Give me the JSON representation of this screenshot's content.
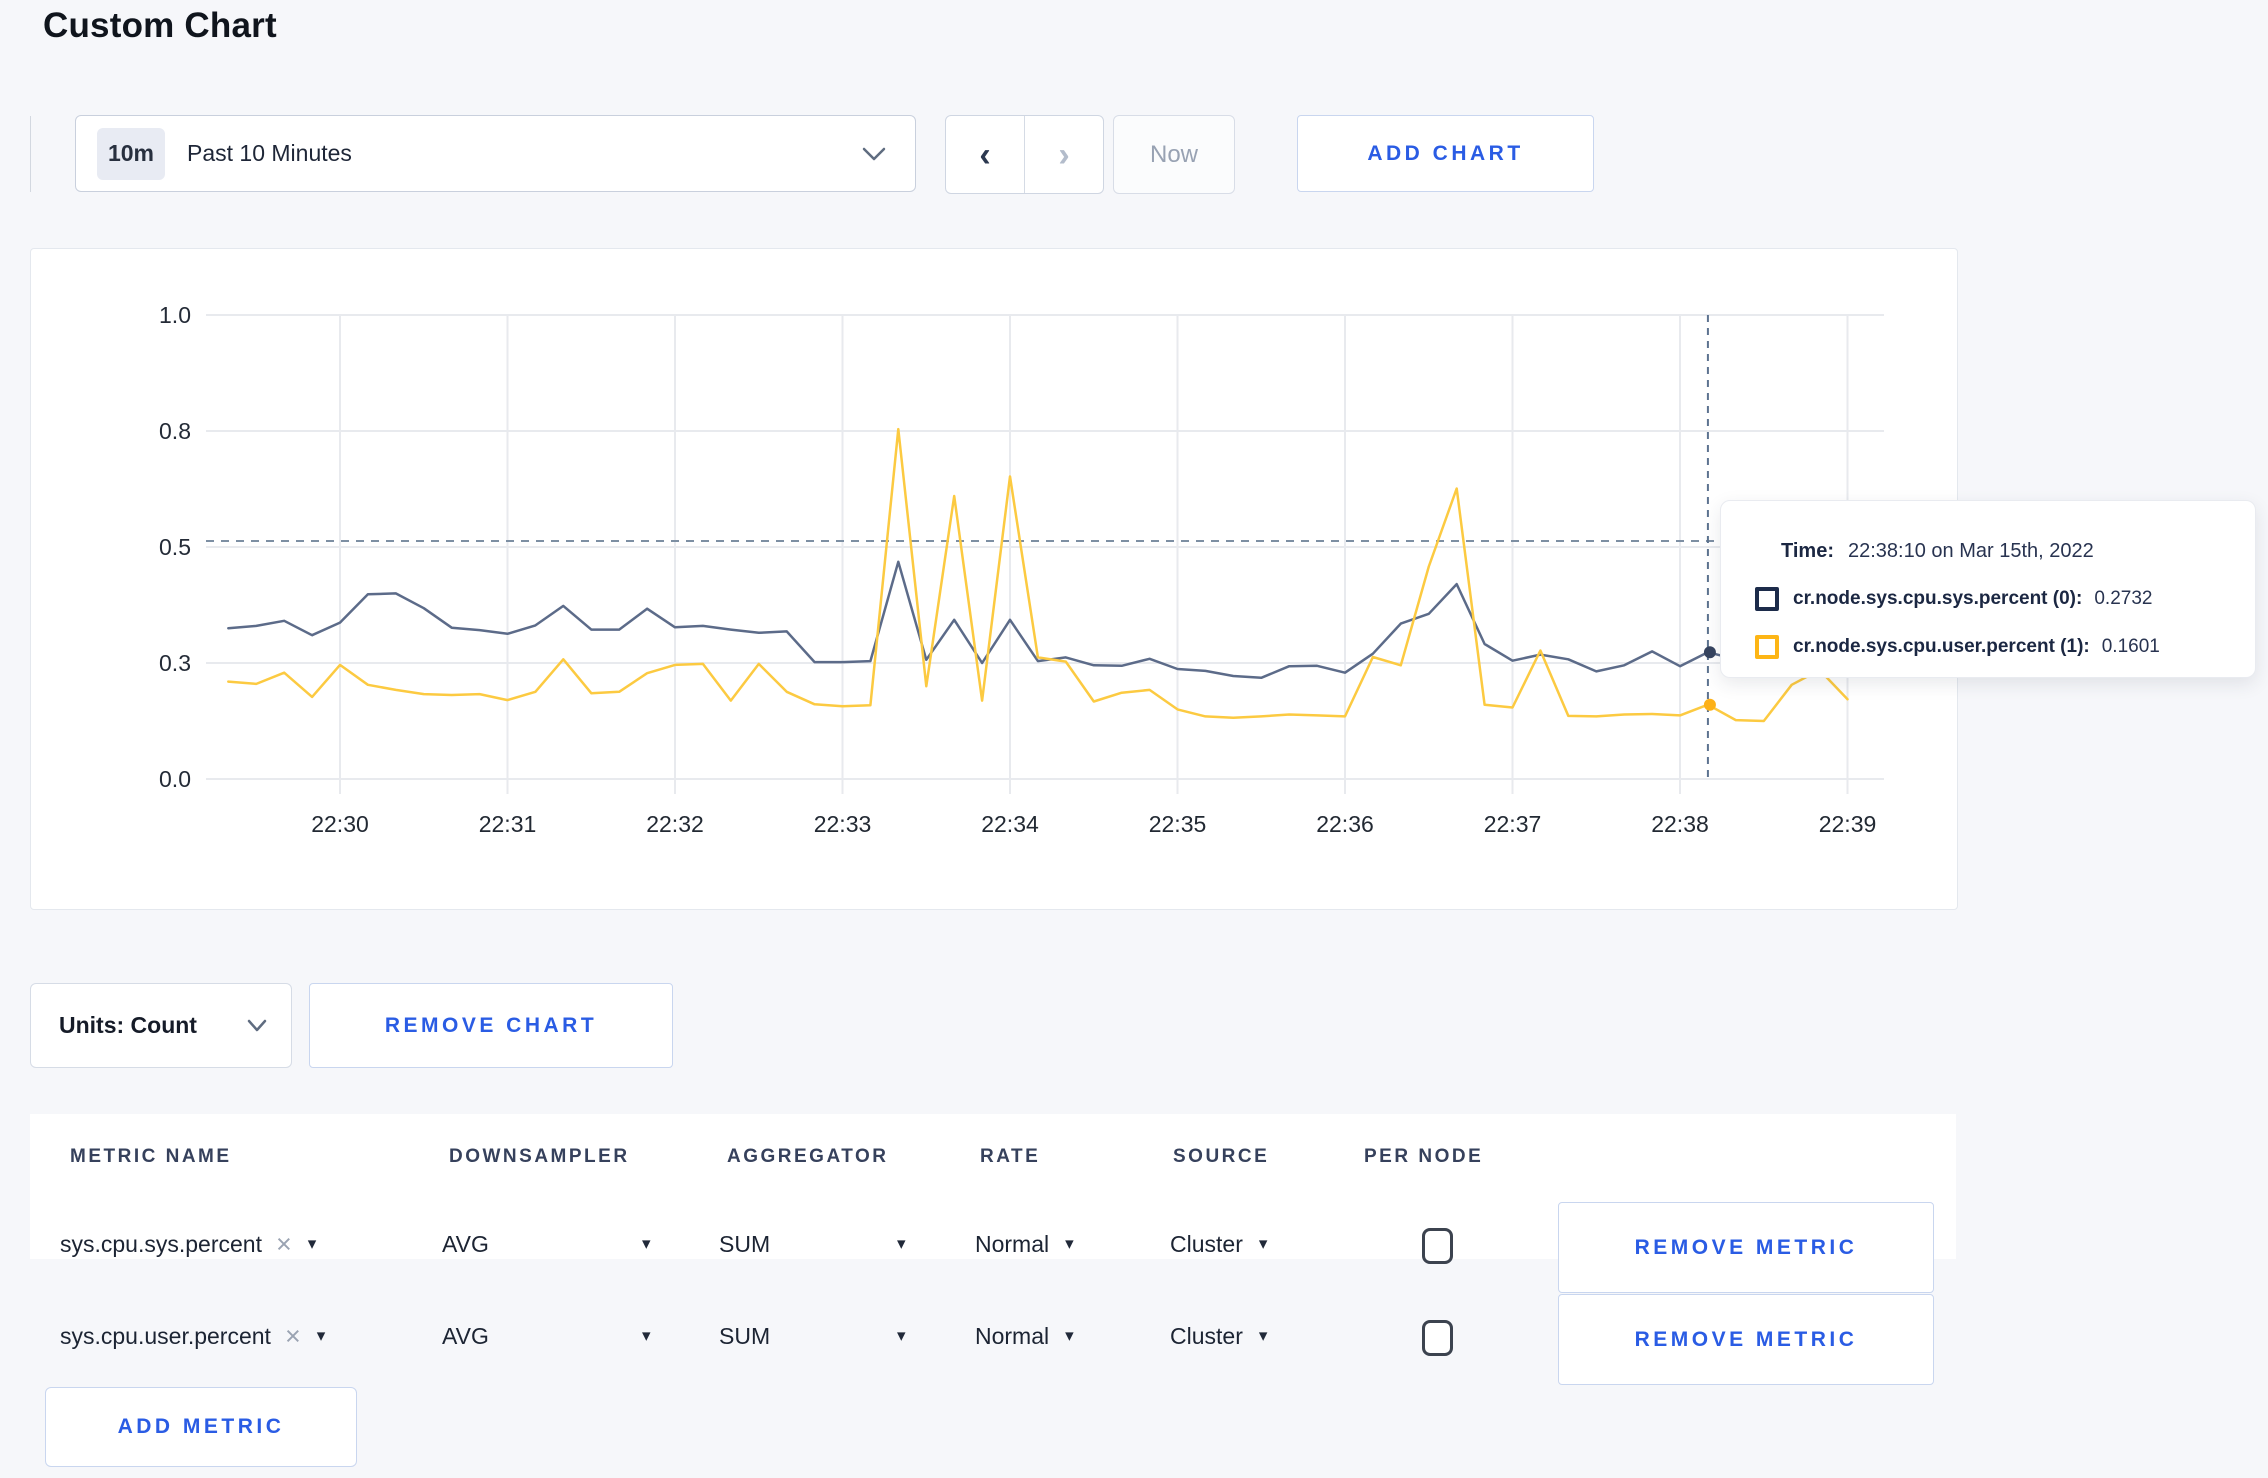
{
  "page": {
    "title": "Custom Chart"
  },
  "toolbar": {
    "time_range_badge": "10m",
    "time_range_label": "Past 10 Minutes",
    "now_label": "Now",
    "add_chart_label": "ADD CHART"
  },
  "tooltip": {
    "time_label": "Time:",
    "time_value": "22:38:10 on Mar 15th, 2022",
    "rows": [
      {
        "label": "cr.node.sys.cpu.sys.percent (0):",
        "value": "0.2732",
        "color": "#1c2b4a"
      },
      {
        "label": "cr.node.sys.cpu.user.percent (1):",
        "value": "0.1601",
        "color": "#fdb515"
      }
    ]
  },
  "units_bar": {
    "units_label": "Units: Count",
    "remove_chart_label": "REMOVE CHART"
  },
  "metrics_table": {
    "headers": [
      "METRIC NAME",
      "DOWNSAMPLER",
      "AGGREGATOR",
      "RATE",
      "SOURCE",
      "PER NODE"
    ],
    "rows": [
      {
        "metric": "sys.cpu.sys.percent",
        "downsampler": "AVG",
        "aggregator": "SUM",
        "rate": "Normal",
        "source": "Cluster",
        "per_node_checked": false
      },
      {
        "metric": "sys.cpu.user.percent",
        "downsampler": "AVG",
        "aggregator": "SUM",
        "rate": "Normal",
        "source": "Cluster",
        "per_node_checked": false
      }
    ],
    "remove_metric_label": "REMOVE METRIC",
    "add_metric_label": "ADD METRIC"
  },
  "chart_data": {
    "type": "line",
    "title": "",
    "xlabel": "",
    "ylabel": "",
    "ylim": [
      0,
      1
    ],
    "grid": true,
    "legend_position": "tooltip",
    "x_ticks": [
      "22:30",
      "22:31",
      "22:32",
      "22:33",
      "22:34",
      "22:35",
      "22:36",
      "22:37",
      "22:38",
      "22:39"
    ],
    "y_tick_labels": [
      "1.0",
      "0.8",
      "0.5",
      "0.3",
      "0.0"
    ],
    "y_tick_values": [
      1.0,
      0.75,
      0.5,
      0.25,
      0.0
    ],
    "x_start": "22:29:20",
    "x_interval_seconds": 10,
    "x_offset_seconds": -40,
    "series": [
      {
        "name": "cr.node.sys.cpu.sys.percent",
        "color": "#5c6b89",
        "dot_color": "#36445f",
        "values": [
          0.325,
          0.33,
          0.341,
          0.31,
          0.337,
          0.398,
          0.4,
          0.368,
          0.326,
          0.321,
          0.313,
          0.331,
          0.373,
          0.322,
          0.322,
          0.367,
          0.327,
          0.33,
          0.322,
          0.315,
          0.318,
          0.252,
          0.252,
          0.254,
          0.468,
          0.257,
          0.343,
          0.25,
          0.343,
          0.254,
          0.262,
          0.245,
          0.244,
          0.259,
          0.237,
          0.233,
          0.222,
          0.218,
          0.243,
          0.244,
          0.229,
          0.27,
          0.335,
          0.356,
          0.42,
          0.291,
          0.255,
          0.268,
          0.258,
          0.232,
          0.245,
          0.275,
          0.243,
          0.2732,
          0.258,
          0.27,
          0.295,
          0.315,
          0.308
        ]
      },
      {
        "name": "cr.node.sys.cpu.user.percent",
        "color": "#fcca41",
        "dot_color": "#fdb117",
        "values": [
          0.21,
          0.205,
          0.229,
          0.177,
          0.246,
          0.203,
          0.192,
          0.183,
          0.181,
          0.183,
          0.17,
          0.188,
          0.258,
          0.185,
          0.188,
          0.228,
          0.246,
          0.248,
          0.169,
          0.248,
          0.188,
          0.161,
          0.157,
          0.159,
          0.754,
          0.2,
          0.61,
          0.169,
          0.652,
          0.262,
          0.253,
          0.167,
          0.186,
          0.192,
          0.15,
          0.135,
          0.132,
          0.135,
          0.139,
          0.137,
          0.135,
          0.263,
          0.245,
          0.458,
          0.626,
          0.16,
          0.154,
          0.277,
          0.136,
          0.135,
          0.139,
          0.14,
          0.137,
          0.1601,
          0.127,
          0.125,
          0.203,
          0.235,
          0.172
        ]
      }
    ],
    "crosshair": {
      "time": "22:38:10",
      "offset_seconds_from_first_tick": 490,
      "hline_value": 0.513,
      "point_values": [
        0.2732,
        0.1601
      ]
    }
  }
}
